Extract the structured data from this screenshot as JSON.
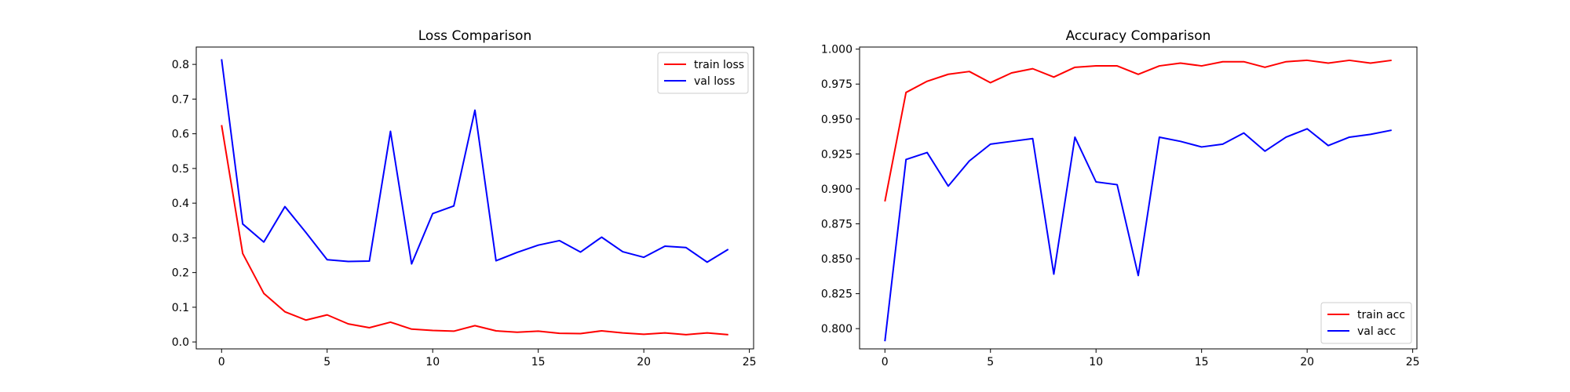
{
  "chart_data": [
    {
      "type": "line",
      "title": "Loss Comparison",
      "xlabel": "",
      "ylabel": "",
      "x": [
        0,
        1,
        2,
        3,
        4,
        5,
        6,
        7,
        8,
        9,
        10,
        11,
        12,
        13,
        14,
        15,
        16,
        17,
        18,
        19,
        20,
        21,
        22,
        23,
        24
      ],
      "xlim": [
        -1.2,
        25.2
      ],
      "ylim": [
        -0.02,
        0.85
      ],
      "xticks": [
        0,
        5,
        10,
        15,
        20,
        25
      ],
      "xtick_labels": [
        "0",
        "5",
        "10",
        "15",
        "20",
        "25"
      ],
      "yticks": [
        0.0,
        0.1,
        0.2,
        0.3,
        0.4,
        0.5,
        0.6,
        0.7,
        0.8
      ],
      "ytick_labels": [
        "0.0",
        "0.1",
        "0.2",
        "0.3",
        "0.4",
        "0.5",
        "0.6",
        "0.7",
        "0.8"
      ],
      "grid": false,
      "legend_position": "top-right",
      "series": [
        {
          "name": "train loss",
          "color": "#ff0000",
          "values": [
            0.625,
            0.255,
            0.14,
            0.087,
            0.063,
            0.078,
            0.052,
            0.041,
            0.057,
            0.037,
            0.033,
            0.031,
            0.047,
            0.032,
            0.028,
            0.031,
            0.025,
            0.024,
            0.032,
            0.026,
            0.022,
            0.026,
            0.021,
            0.026,
            0.021
          ]
        },
        {
          "name": "val loss",
          "color": "#0000ff",
          "values": [
            0.815,
            0.34,
            0.288,
            0.39,
            0.315,
            0.237,
            0.232,
            0.233,
            0.607,
            0.225,
            0.37,
            0.392,
            0.668,
            0.234,
            0.258,
            0.279,
            0.292,
            0.259,
            0.302,
            0.26,
            0.244,
            0.276,
            0.272,
            0.23,
            0.267
          ]
        }
      ]
    },
    {
      "type": "line",
      "title": "Accuracy Comparison",
      "xlabel": "",
      "ylabel": "",
      "x": [
        0,
        1,
        2,
        3,
        4,
        5,
        6,
        7,
        8,
        9,
        10,
        11,
        12,
        13,
        14,
        15,
        16,
        17,
        18,
        19,
        20,
        21,
        22,
        23,
        24
      ],
      "xlim": [
        -1.2,
        25.2
      ],
      "ylim": [
        0.7855,
        1.0015
      ],
      "xticks": [
        0,
        5,
        10,
        15,
        20,
        25
      ],
      "xtick_labels": [
        "0",
        "5",
        "10",
        "15",
        "20",
        "25"
      ],
      "yticks": [
        0.8,
        0.825,
        0.85,
        0.875,
        0.9,
        0.925,
        0.95,
        0.975,
        1.0
      ],
      "ytick_labels": [
        "0.800",
        "0.825",
        "0.850",
        "0.875",
        "0.900",
        "0.925",
        "0.950",
        "0.975",
        "1.000"
      ],
      "grid": false,
      "legend_position": "bottom-right",
      "series": [
        {
          "name": "train acc",
          "color": "#ff0000",
          "values": [
            0.891,
            0.969,
            0.977,
            0.982,
            0.984,
            0.976,
            0.983,
            0.986,
            0.98,
            0.987,
            0.988,
            0.988,
            0.982,
            0.988,
            0.99,
            0.988,
            0.991,
            0.991,
            0.987,
            0.991,
            0.992,
            0.99,
            0.992,
            0.99,
            0.992
          ]
        },
        {
          "name": "val acc",
          "color": "#0000ff",
          "values": [
            0.791,
            0.921,
            0.926,
            0.902,
            0.92,
            0.932,
            0.934,
            0.936,
            0.839,
            0.937,
            0.905,
            0.903,
            0.838,
            0.937,
            0.934,
            0.93,
            0.932,
            0.94,
            0.927,
            0.937,
            0.943,
            0.931,
            0.937,
            0.939,
            0.942
          ]
        }
      ]
    }
  ]
}
